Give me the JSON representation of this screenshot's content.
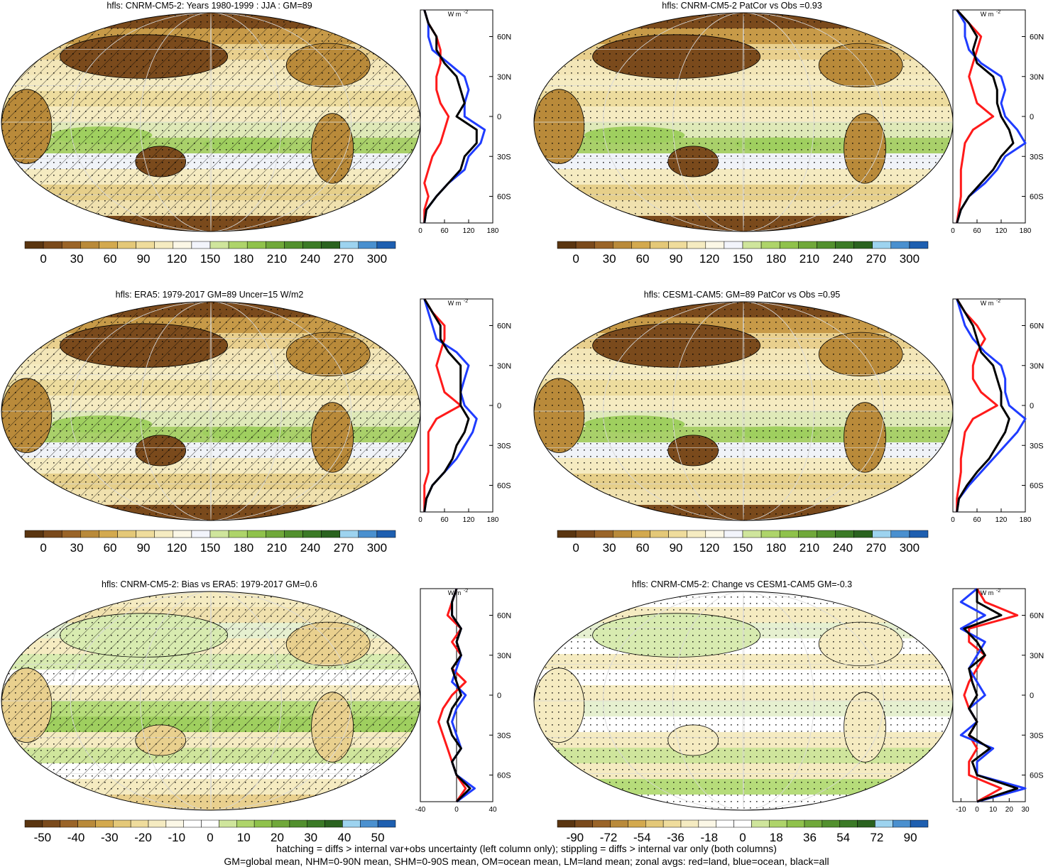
{
  "colors": {
    "ocean_lines": "#1f3cff",
    "land_lines": "#ff1a1a",
    "all_lines": "#000000",
    "abs_palette": [
      "#5a3510",
      "#7a4a1c",
      "#9a6428",
      "#b98a3a",
      "#d3a94e",
      "#e4c878",
      "#efdc9c",
      "#f5ebc1",
      "#fbf7e6",
      "#f2f4fb",
      "#cfe59c",
      "#aed46a",
      "#8fc24b",
      "#70a83a",
      "#52902e",
      "#3b7a26",
      "#2a621f",
      "#9dd3ef",
      "#4a90cf",
      "#1e5fb0"
    ],
    "diff_palette": [
      "#5a3510",
      "#7a4a1c",
      "#9a6428",
      "#b98a3a",
      "#d3a94e",
      "#e4c878",
      "#efdc9c",
      "#f5ebc1",
      "#fbf7e6",
      "#ffffff",
      "#ffffff",
      "#cfe59c",
      "#aed46a",
      "#8fc24b",
      "#70a83a",
      "#52902e",
      "#3b7a26",
      "#2a621f",
      "#9dd3ef",
      "#4a90cf",
      "#1e5fb0"
    ]
  },
  "units_label": "W m",
  "units_exp": "-2",
  "lat_ticks": [
    "60N",
    "30N",
    "0",
    "30S",
    "60S"
  ],
  "panels": [
    {
      "title": "hfls: CNRM-CM5-2: Years 1980-1999 : JJA : GM=89",
      "kind": "abs",
      "hatched": true,
      "colorbar": [
        "0",
        "30",
        "60",
        "90",
        "120",
        "150",
        "180",
        "210",
        "240",
        "270",
        "300"
      ],
      "zonal_xticks": [
        "0",
        "60",
        "120",
        "180"
      ]
    },
    {
      "title": "hfls: CNRM-CM5-2 PatCor vs Obs =0.93",
      "kind": "abs",
      "hatched": false,
      "colorbar": [
        "0",
        "30",
        "60",
        "90",
        "120",
        "150",
        "180",
        "210",
        "240",
        "270",
        "300"
      ],
      "zonal_xticks": [
        "0",
        "60",
        "120",
        "180"
      ]
    },
    {
      "title": "hfls: ERA5: 1979-2017 GM=89 Uncer=15 W/m2",
      "kind": "abs",
      "hatched": true,
      "colorbar": [
        "0",
        "30",
        "60",
        "90",
        "120",
        "150",
        "180",
        "210",
        "240",
        "270",
        "300"
      ],
      "zonal_xticks": [
        "0",
        "60",
        "120",
        "180"
      ]
    },
    {
      "title": "hfls: CESM1-CAM5: GM=89 PatCor vs Obs =0.95",
      "kind": "abs",
      "hatched": false,
      "colorbar": [
        "0",
        "30",
        "60",
        "90",
        "120",
        "150",
        "180",
        "210",
        "240",
        "270",
        "300"
      ],
      "zonal_xticks": [
        "0",
        "60",
        "120",
        "180"
      ]
    },
    {
      "title": "hfls: CNRM-CM5-2: Bias vs ERA5: 1979-2017 GM=0.6",
      "kind": "bias",
      "hatched": true,
      "colorbar": [
        "-50",
        "-40",
        "-30",
        "-20",
        "-10",
        "0",
        "10",
        "20",
        "30",
        "40",
        "50"
      ],
      "zonal_xticks": [
        "-40",
        "0",
        "40"
      ]
    },
    {
      "title": "hfls: CNRM-CM5-2: Change vs CESM1-CAM5 GM=-0.3",
      "kind": "change",
      "hatched": false,
      "colorbar": [
        "-90",
        "-72",
        "-54",
        "-36",
        "-18",
        "0",
        "18",
        "36",
        "54",
        "72",
        "90"
      ],
      "zonal_xticks": [
        "-10",
        "0",
        "10",
        "20",
        "30"
      ]
    }
  ],
  "chart_data": {
    "type": "line",
    "description_series": [
      "land",
      "ocean",
      "all"
    ],
    "zonal_profiles": [
      {
        "x_range": [
          0,
          180
        ],
        "series": [
          {
            "name": "land",
            "lat": [
              80,
              70,
              60,
              50,
              40,
              30,
              20,
              10,
              0,
              -10,
              -20,
              -30,
              -40,
              -50,
              -60,
              -70,
              -80
            ],
            "values": [
              10,
              20,
              40,
              50,
              50,
              40,
              40,
              50,
              70,
              60,
              50,
              30,
              20,
              10,
              20,
              10,
              10
            ]
          },
          {
            "name": "ocean",
            "lat": [
              80,
              70,
              60,
              50,
              40,
              30,
              20,
              10,
              0,
              -10,
              -20,
              -30,
              -40,
              -50,
              -60,
              -70,
              -80
            ],
            "values": [
              10,
              20,
              20,
              30,
              70,
              110,
              120,
              110,
              110,
              160,
              150,
              120,
              110,
              70,
              40,
              15,
              10
            ]
          },
          {
            "name": "all",
            "lat": [
              80,
              70,
              60,
              50,
              40,
              30,
              20,
              10,
              0,
              -10,
              -20,
              -30,
              -40,
              -50,
              -60,
              -70,
              -80
            ],
            "values": [
              10,
              20,
              40,
              40,
              60,
              90,
              100,
              110,
              90,
              140,
              140,
              110,
              100,
              70,
              40,
              15,
              10
            ]
          }
        ]
      },
      {
        "x_range": [
          0,
          180
        ],
        "series": [
          {
            "name": "land",
            "lat": [
              80,
              70,
              60,
              50,
              40,
              30,
              20,
              10,
              0,
              -10,
              -20,
              -30,
              -40,
              -50,
              -60,
              -70,
              -80
            ],
            "values": [
              10,
              40,
              70,
              60,
              50,
              40,
              50,
              60,
              100,
              50,
              30,
              25,
              20,
              20,
              20,
              15,
              10
            ]
          },
          {
            "name": "ocean",
            "lat": [
              80,
              70,
              60,
              50,
              40,
              30,
              20,
              10,
              0,
              -10,
              -20,
              -30,
              -40,
              -50,
              -60,
              -70,
              -80
            ],
            "values": [
              10,
              30,
              30,
              40,
              70,
              120,
              130,
              120,
              130,
              160,
              180,
              130,
              110,
              80,
              40,
              20,
              10
            ]
          },
          {
            "name": "all",
            "lat": [
              80,
              70,
              60,
              50,
              40,
              30,
              20,
              10,
              0,
              -10,
              -20,
              -30,
              -40,
              -50,
              -60,
              -70,
              -80
            ],
            "values": [
              10,
              40,
              60,
              50,
              60,
              100,
              110,
              110,
              120,
              140,
              150,
              120,
              100,
              70,
              40,
              20,
              10
            ]
          }
        ]
      },
      {
        "x_range": [
          0,
          180
        ],
        "series": [
          {
            "name": "land",
            "lat": [
              80,
              70,
              60,
              50,
              40,
              30,
              20,
              10,
              0,
              -10,
              -20,
              -30,
              -40,
              -50,
              -60,
              -70,
              -80
            ],
            "values": [
              10,
              30,
              60,
              60,
              50,
              40,
              50,
              60,
              100,
              40,
              20,
              20,
              20,
              20,
              10,
              10,
              10
            ]
          },
          {
            "name": "ocean",
            "lat": [
              80,
              70,
              60,
              50,
              40,
              30,
              20,
              10,
              0,
              -10,
              -20,
              -30,
              -40,
              -50,
              -60,
              -70,
              -80
            ],
            "values": [
              10,
              20,
              30,
              40,
              90,
              120,
              110,
              100,
              110,
              140,
              130,
              110,
              90,
              60,
              30,
              15,
              10
            ]
          },
          {
            "name": "all",
            "lat": [
              80,
              70,
              60,
              50,
              40,
              30,
              20,
              10,
              0,
              -10,
              -20,
              -30,
              -40,
              -50,
              -60,
              -70,
              -80
            ],
            "values": [
              10,
              30,
              50,
              50,
              70,
              100,
              100,
              100,
              100,
              120,
              110,
              90,
              80,
              60,
              30,
              15,
              10
            ]
          }
        ]
      },
      {
        "x_range": [
          0,
          180
        ],
        "series": [
          {
            "name": "land",
            "lat": [
              80,
              70,
              60,
              50,
              40,
              30,
              20,
              10,
              0,
              -10,
              -20,
              -30,
              -40,
              -50,
              -60,
              -70,
              -80
            ],
            "values": [
              10,
              30,
              60,
              80,
              60,
              50,
              50,
              70,
              110,
              50,
              30,
              25,
              20,
              20,
              15,
              10,
              10
            ]
          },
          {
            "name": "ocean",
            "lat": [
              80,
              70,
              60,
              50,
              40,
              30,
              20,
              10,
              0,
              -10,
              -20,
              -30,
              -40,
              -50,
              -60,
              -70,
              -80
            ],
            "values": [
              10,
              20,
              30,
              50,
              80,
              120,
              130,
              130,
              140,
              180,
              160,
              130,
              100,
              70,
              40,
              15,
              10
            ]
          },
          {
            "name": "all",
            "lat": [
              80,
              70,
              60,
              50,
              40,
              30,
              20,
              10,
              0,
              -10,
              -20,
              -30,
              -40,
              -50,
              -60,
              -70,
              -80
            ],
            "values": [
              10,
              30,
              50,
              60,
              70,
              100,
              110,
              120,
              120,
              140,
              130,
              110,
              90,
              60,
              35,
              15,
              10
            ]
          }
        ]
      },
      {
        "x_range": [
          -40,
          40
        ],
        "series": [
          {
            "name": "land",
            "lat": [
              80,
              70,
              60,
              50,
              40,
              30,
              20,
              10,
              0,
              -10,
              -20,
              -30,
              -40,
              -50,
              -60,
              -70,
              -80
            ],
            "values": [
              0,
              -5,
              -10,
              5,
              -5,
              5,
              -5,
              10,
              -5,
              -15,
              -20,
              -15,
              -10,
              -5,
              0,
              10,
              0
            ]
          },
          {
            "name": "ocean",
            "lat": [
              80,
              70,
              60,
              50,
              40,
              30,
              20,
              10,
              0,
              -10,
              -20,
              -30,
              -40,
              -50,
              -60,
              -70,
              -80
            ],
            "values": [
              0,
              -5,
              -5,
              5,
              0,
              5,
              0,
              -5,
              10,
              0,
              -5,
              0,
              5,
              -5,
              0,
              20,
              0
            ]
          },
          {
            "name": "all",
            "lat": [
              80,
              70,
              60,
              50,
              40,
              30,
              20,
              10,
              0,
              -10,
              -20,
              -30,
              -40,
              -50,
              -60,
              -70,
              -80
            ],
            "values": [
              0,
              -5,
              -5,
              5,
              0,
              5,
              -5,
              0,
              5,
              -5,
              -10,
              -5,
              5,
              -5,
              0,
              15,
              0
            ]
          }
        ]
      },
      {
        "x_range": [
          -15,
          30
        ],
        "series": [
          {
            "name": "land",
            "lat": [
              80,
              70,
              60,
              50,
              40,
              30,
              20,
              10,
              0,
              -10,
              -20,
              -30,
              -40,
              -50,
              -60,
              -70,
              -80
            ],
            "values": [
              0,
              5,
              25,
              -5,
              -5,
              5,
              0,
              -5,
              -8,
              -5,
              0,
              -5,
              0,
              -5,
              -5,
              15,
              0
            ]
          },
          {
            "name": "ocean",
            "lat": [
              80,
              70,
              60,
              50,
              40,
              30,
              20,
              10,
              0,
              -10,
              -20,
              -30,
              -40,
              -50,
              -60,
              -70,
              -80
            ],
            "values": [
              0,
              -10,
              5,
              -10,
              5,
              0,
              -5,
              0,
              5,
              -5,
              0,
              -10,
              10,
              0,
              0,
              30,
              0
            ]
          },
          {
            "name": "all",
            "lat": [
              80,
              70,
              60,
              50,
              40,
              30,
              20,
              10,
              0,
              -10,
              -20,
              -30,
              -40,
              -50,
              -60,
              -70,
              -80
            ],
            "values": [
              0,
              0,
              15,
              -8,
              0,
              5,
              -5,
              -3,
              0,
              -5,
              0,
              -5,
              8,
              -3,
              0,
              25,
              0
            ]
          }
        ]
      }
    ]
  },
  "footer_line1": "hatching = diffs > internal var+obs uncertainty (left column only); stippling = diffs > internal var only (both columns)",
  "footer_line2": "GM=global mean, NHM=0-90N mean, SHM=0-90S mean, OM=ocean mean, LM=land mean; zonal avgs: red=land, blue=ocean, black=all"
}
